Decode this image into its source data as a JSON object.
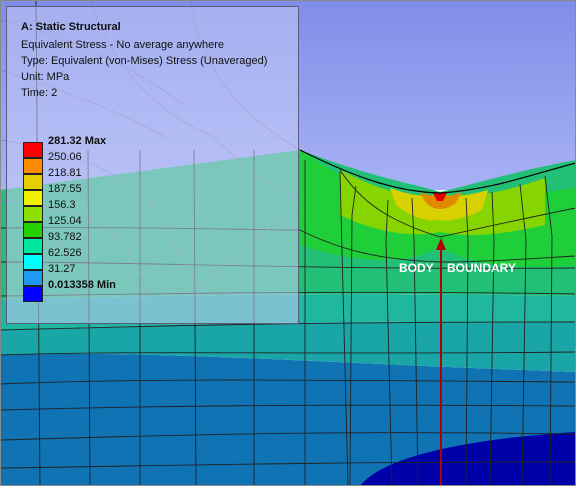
{
  "info": {
    "title": "A: Static Structural",
    "result_name": "Equivalent Stress - No average anywhere",
    "type": "Type: Equivalent (von-Mises) Stress (Unaveraged)",
    "unit": "Unit: MPa",
    "time": "Time: 2"
  },
  "legend": {
    "max_label": "281.32 Max",
    "min_label": "0.013358 Min",
    "levels": [
      "250.06",
      "218.81",
      "187.55",
      "156.3",
      "125.04",
      "93.782",
      "62.526",
      "31.27"
    ],
    "colors": [
      "#ff0000",
      "#ff8c00",
      "#e6cf00",
      "#f2f200",
      "#8ee000",
      "#25d200",
      "#00e8a0",
      "#00ffff",
      "#1e9bf0",
      "#0000ff"
    ]
  },
  "bodies": {
    "left_label": "BODY",
    "right_label": "BOUNDARY"
  },
  "colors": {
    "upper_body_bg": "#9aa6f2",
    "boundary_line": "#c00000"
  }
}
